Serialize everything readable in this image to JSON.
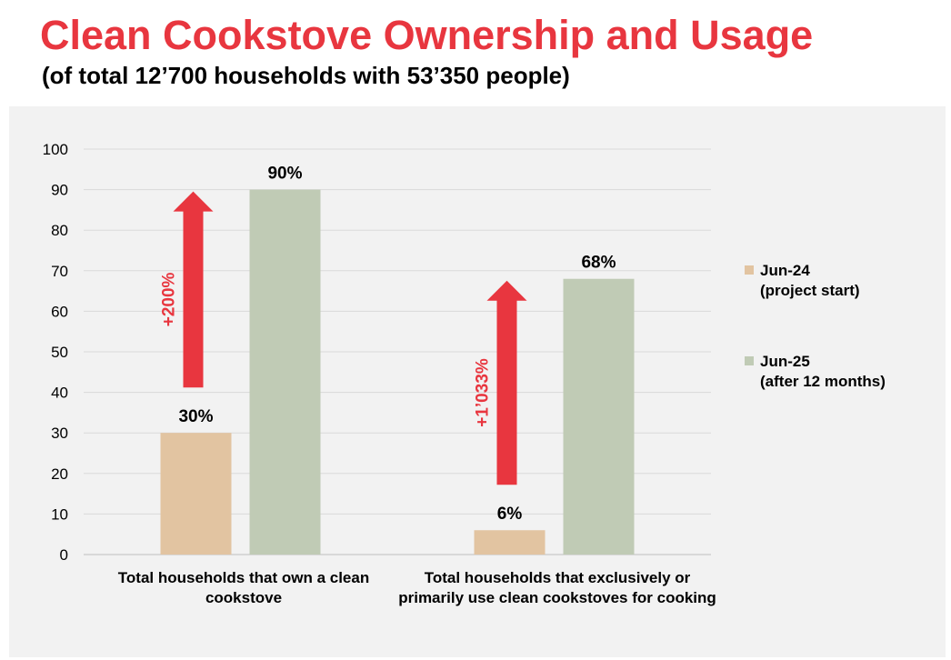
{
  "header": {
    "title": "Clean Cookstove Ownership and Usage",
    "subtitle": "(of total 12’700 households with 53’350 people)"
  },
  "chart_data": {
    "type": "bar",
    "categories": [
      "Total households that own a clean cookstove",
      "Total households that exclusively or primarily use clean cookstoves for cooking"
    ],
    "series": [
      {
        "name_line1": "Jun-24",
        "name_line2": "(project start)",
        "color": "#e2c4a1",
        "values": [
          30,
          6
        ],
        "labels": [
          "30%",
          "6%"
        ]
      },
      {
        "name_line1": "Jun-25",
        "name_line2": "(after 12 months)",
        "color": "#c0cbb5",
        "values": [
          90,
          68
        ],
        "labels": [
          "90%",
          "68%"
        ]
      }
    ],
    "ylim": [
      0,
      100
    ],
    "yticks": [
      "0",
      "10",
      "20",
      "30",
      "40",
      "50",
      "60",
      "70",
      "80",
      "90",
      "100"
    ],
    "grid": true,
    "legend_position": "right",
    "annotations": [
      {
        "category": 0,
        "text": "+200%",
        "color": "#e8363f"
      },
      {
        "category": 1,
        "text": "+1’033%",
        "color": "#e8363f"
      }
    ]
  }
}
